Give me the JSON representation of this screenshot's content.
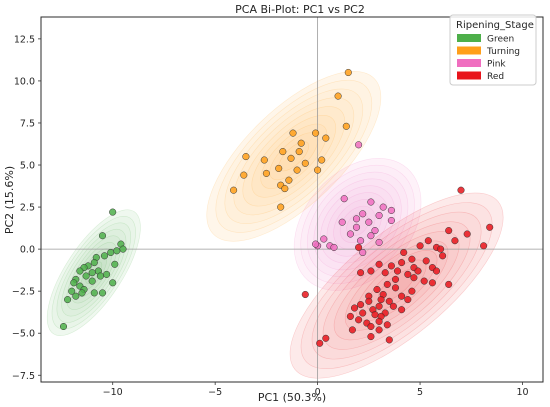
{
  "chart_data": {
    "type": "scatter",
    "title": "PCA Bi-Plot: PC1 vs PC2",
    "xlabel": "PC1 (50.3%)",
    "ylabel": "PC2 (15.6%)",
    "xlim": [
      -13.5,
      11.0
    ],
    "ylim": [
      -7.9,
      13.8
    ],
    "x_ticks": [
      -10,
      -5,
      0,
      5,
      10
    ],
    "y_ticks": [
      -7.5,
      -5.0,
      -2.5,
      0.0,
      2.5,
      5.0,
      7.5,
      10.0,
      12.5
    ],
    "x_tick_labels": [
      "−10",
      "−5",
      "0",
      "5",
      "10"
    ],
    "y_tick_labels": [
      "−7.5",
      "−5.0",
      "−2.5",
      "0.0",
      "2.5",
      "5.0",
      "7.5",
      "10.0",
      "12.5"
    ],
    "grid": false,
    "reference_lines": {
      "x": 0,
      "y": 0
    },
    "legend": {
      "title": "Ripening_Stage",
      "placement": "top-right"
    },
    "series": [
      {
        "name": "Green",
        "color": "#4daf4a",
        "points": [
          [
            -10.0,
            2.2
          ],
          [
            -10.5,
            0.8
          ],
          [
            -9.6,
            0.3
          ],
          [
            -9.5,
            0.0
          ],
          [
            -9.8,
            -0.1
          ],
          [
            -10.1,
            -0.2
          ],
          [
            -10.4,
            -0.4
          ],
          [
            -10.8,
            -0.5
          ],
          [
            -9.9,
            -0.9
          ],
          [
            -10.9,
            -0.8
          ],
          [
            -11.2,
            -1.0
          ],
          [
            -10.7,
            -1.3
          ],
          [
            -11.0,
            -1.4
          ],
          [
            -11.4,
            -1.1
          ],
          [
            -10.3,
            -1.5
          ],
          [
            -10.6,
            -1.6
          ],
          [
            -11.6,
            -1.3
          ],
          [
            -11.3,
            -1.6
          ],
          [
            -10.0,
            -2.0
          ],
          [
            -11.8,
            -1.8
          ],
          [
            -11.0,
            -1.9
          ],
          [
            -11.9,
            -2.0
          ],
          [
            -11.6,
            -2.2
          ],
          [
            -11.4,
            -2.4
          ],
          [
            -10.9,
            -2.6
          ],
          [
            -10.5,
            -2.6
          ],
          [
            -11.5,
            -2.6
          ],
          [
            -12.0,
            -2.5
          ],
          [
            -12.2,
            -3.0
          ],
          [
            -11.8,
            -2.8
          ],
          [
            -12.4,
            -4.6
          ]
        ]
      },
      {
        "name": "Turning",
        "color": "#ff9f1a",
        "points": [
          [
            1.5,
            10.5
          ],
          [
            1.0,
            9.1
          ],
          [
            1.4,
            7.3
          ],
          [
            0.4,
            6.6
          ],
          [
            -0.1,
            6.9
          ],
          [
            -1.2,
            6.9
          ],
          [
            -0.8,
            6.3
          ],
          [
            -1.7,
            5.8
          ],
          [
            -0.9,
            5.8
          ],
          [
            -1.3,
            5.4
          ],
          [
            -3.5,
            5.5
          ],
          [
            -2.6,
            5.3
          ],
          [
            0.2,
            5.3
          ],
          [
            0.0,
            4.7
          ],
          [
            -1.9,
            4.8
          ],
          [
            -1.0,
            4.7
          ],
          [
            -2.5,
            4.5
          ],
          [
            -3.6,
            4.4
          ],
          [
            -1.4,
            4.1
          ],
          [
            -0.6,
            5.1
          ],
          [
            -1.8,
            3.8
          ],
          [
            -1.6,
            3.6
          ],
          [
            -4.1,
            3.5
          ],
          [
            -1.8,
            2.5
          ]
        ]
      },
      {
        "name": "Pink",
        "color": "#f06ec0",
        "points": [
          [
            2.0,
            6.2
          ],
          [
            1.3,
            3.0
          ],
          [
            2.6,
            2.8
          ],
          [
            3.2,
            2.5
          ],
          [
            3.6,
            2.3
          ],
          [
            2.2,
            2.1
          ],
          [
            3.0,
            2.0
          ],
          [
            1.9,
            1.8
          ],
          [
            1.2,
            1.6
          ],
          [
            2.5,
            1.6
          ],
          [
            3.6,
            1.7
          ],
          [
            1.9,
            1.3
          ],
          [
            2.8,
            1.1
          ],
          [
            1.6,
            0.9
          ],
          [
            2.6,
            0.8
          ],
          [
            2.1,
            0.5
          ],
          [
            3.0,
            0.4
          ],
          [
            0.3,
            0.6
          ],
          [
            0.6,
            0.2
          ],
          [
            0.0,
            0.2
          ],
          [
            -0.1,
            0.3
          ],
          [
            0.8,
            0.1
          ],
          [
            2.2,
            -0.2
          ]
        ]
      },
      {
        "name": "Red",
        "color": "#e8141b",
        "points": [
          [
            7.0,
            3.5
          ],
          [
            8.4,
            1.3
          ],
          [
            6.4,
            1.1
          ],
          [
            7.3,
            0.9
          ],
          [
            5.4,
            0.5
          ],
          [
            5.0,
            0.2
          ],
          [
            6.7,
            0.5
          ],
          [
            5.8,
            0.1
          ],
          [
            6.0,
            0.0
          ],
          [
            4.2,
            -0.2
          ],
          [
            6.1,
            -0.4
          ],
          [
            4.6,
            -0.6
          ],
          [
            5.3,
            -0.7
          ],
          [
            4.1,
            -0.8
          ],
          [
            3.0,
            -0.9
          ],
          [
            3.6,
            -1.0
          ],
          [
            4.7,
            -1.1
          ],
          [
            5.6,
            -1.1
          ],
          [
            5.8,
            -1.3
          ],
          [
            4.9,
            -1.3
          ],
          [
            3.9,
            -1.3
          ],
          [
            3.3,
            -1.4
          ],
          [
            2.6,
            -1.3
          ],
          [
            2.1,
            -1.4
          ],
          [
            4.4,
            -1.5
          ],
          [
            4.7,
            -1.7
          ],
          [
            3.8,
            -1.8
          ],
          [
            5.2,
            -1.9
          ],
          [
            5.6,
            -2.0
          ],
          [
            6.4,
            -2.1
          ],
          [
            3.4,
            -2.1
          ],
          [
            3.8,
            -2.3
          ],
          [
            2.9,
            -2.4
          ],
          [
            3.2,
            -2.7
          ],
          [
            4.6,
            -2.5
          ],
          [
            2.5,
            -2.8
          ],
          [
            4.1,
            -2.8
          ],
          [
            4.4,
            -3.0
          ],
          [
            3.1,
            -3.0
          ],
          [
            2.5,
            -3.1
          ],
          [
            3.5,
            -3.1
          ],
          [
            2.1,
            -3.3
          ],
          [
            3.0,
            -3.4
          ],
          [
            3.7,
            -3.4
          ],
          [
            1.8,
            -3.5
          ],
          [
            2.7,
            -3.6
          ],
          [
            3.3,
            -3.8
          ],
          [
            4.1,
            -3.6
          ],
          [
            2.2,
            -3.8
          ],
          [
            2.8,
            -3.9
          ],
          [
            3.1,
            -4.0
          ],
          [
            1.6,
            -4.0
          ],
          [
            2.0,
            -4.2
          ],
          [
            3.0,
            -4.3
          ],
          [
            2.4,
            -4.4
          ],
          [
            3.4,
            -4.5
          ],
          [
            2.6,
            -4.6
          ],
          [
            3.0,
            -4.8
          ],
          [
            1.7,
            -4.8
          ],
          [
            2.6,
            -5.2
          ],
          [
            3.5,
            -5.4
          ],
          [
            0.4,
            -5.3
          ],
          [
            0.1,
            -5.6
          ],
          [
            -0.6,
            -2.7
          ],
          [
            2.0,
            0.1
          ],
          [
            8.1,
            0.2
          ]
        ]
      }
    ]
  }
}
